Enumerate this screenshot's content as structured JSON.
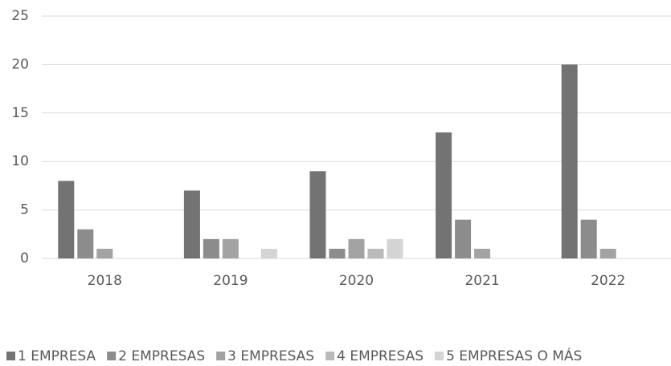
{
  "chart_data": {
    "type": "bar",
    "categories": [
      "2018",
      "2019",
      "2020",
      "2021",
      "2022"
    ],
    "series": [
      {
        "name": "1 EMPRESA",
        "color": "#737373",
        "values": [
          8,
          7,
          9,
          13,
          20
        ]
      },
      {
        "name": "2 EMPRESAS",
        "color": "#8c8c8c",
        "values": [
          3,
          2,
          1,
          4,
          4
        ]
      },
      {
        "name": "3 EMPRESAS",
        "color": "#a3a3a3",
        "values": [
          1,
          2,
          2,
          1,
          1
        ]
      },
      {
        "name": "4 EMPRESAS",
        "color": "#bababa",
        "values": [
          0,
          0,
          1,
          0,
          0
        ]
      },
      {
        "name": "5 EMPRESAS O MÁS",
        "color": "#d4d4d4",
        "values": [
          0,
          1,
          2,
          0,
          0
        ]
      }
    ],
    "ylim": [
      0,
      25
    ],
    "yticks": [
      0,
      5,
      10,
      15,
      20,
      25
    ],
    "grid": true,
    "legend": "bottom"
  }
}
